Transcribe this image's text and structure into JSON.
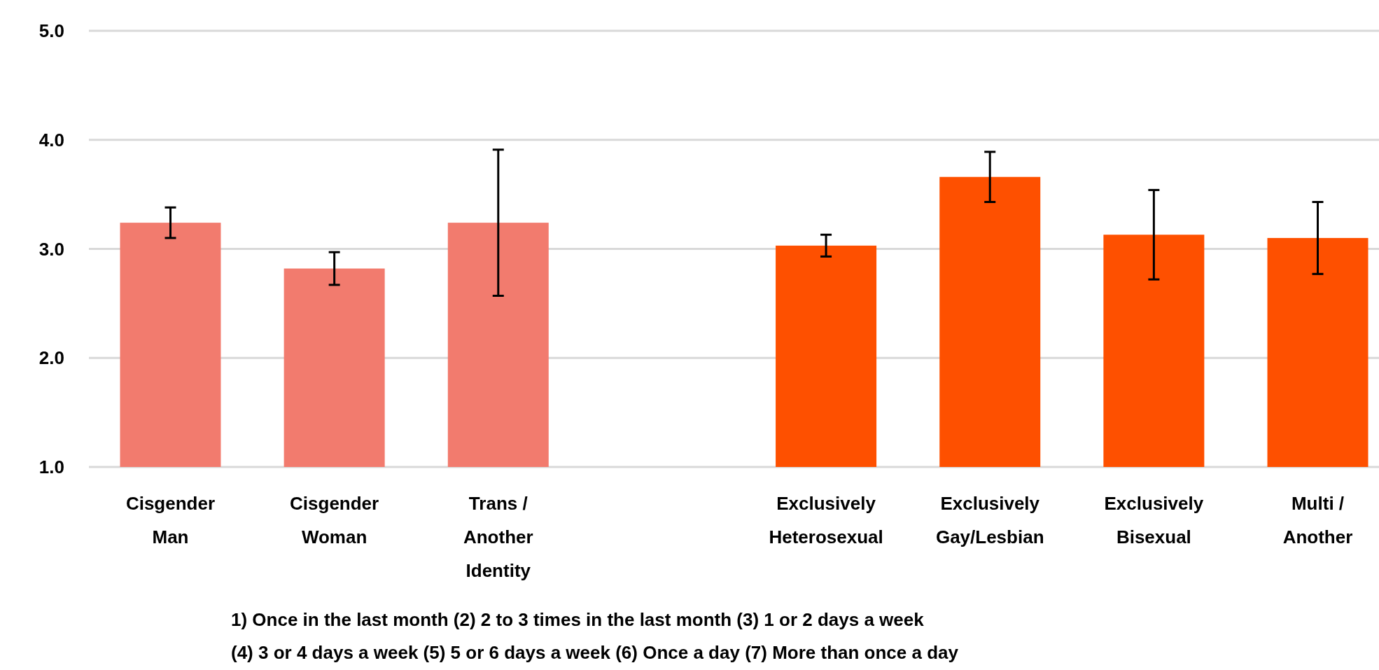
{
  "chart_data": {
    "type": "bar",
    "categories": [
      "Cisgender Man",
      "Cisgender Woman",
      "Trans / Another Identity",
      null,
      "Exclusively Heterosexual",
      "Exclusively Gay/Lesbian",
      "Exclusively Bisexual",
      "Multi / Another"
    ],
    "values": [
      3.24,
      2.82,
      3.24,
      null,
      3.03,
      3.66,
      3.13,
      3.1
    ],
    "errors": [
      0.14,
      0.15,
      0.67,
      null,
      0.1,
      0.23,
      0.41,
      0.33
    ],
    "colors": [
      "#f27b6e",
      "#f27b6e",
      "#f27b6e",
      null,
      "#fe5000",
      "#fe5000",
      "#fe5000",
      "#fe5000"
    ],
    "ylim": [
      1,
      5
    ],
    "yticks": [
      {
        "value": 1,
        "label": "1.0"
      },
      {
        "value": 2,
        "label": "2.0"
      },
      {
        "value": 3,
        "label": "3.0"
      },
      {
        "value": 4,
        "label": "4.0"
      },
      {
        "value": 5,
        "label": "5.0"
      }
    ],
    "grid": "y",
    "annotations": [
      "1) Once in the last month (2) 2 to 3 times in the last month (3) 1 or 2 days a week",
      "(4) 3 or 4 days a week (5) 5 or 6 days a week (6) Once a day (7) More than once a day"
    ]
  }
}
